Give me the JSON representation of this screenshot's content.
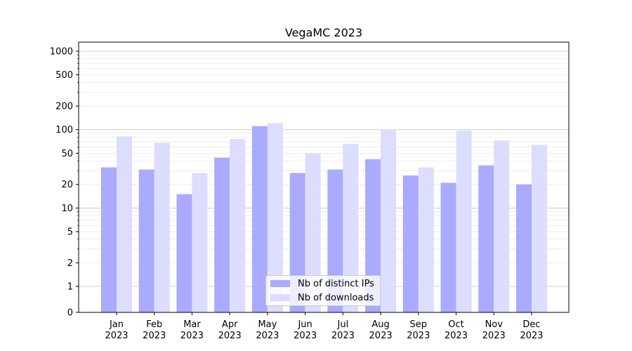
{
  "chart_data": {
    "type": "bar",
    "title": "VegaMC 2023",
    "xlabel": "",
    "ylabel": "",
    "yscale": "symlog",
    "ylim": [
      0,
      1200
    ],
    "yticks": [
      0,
      1,
      2,
      5,
      10,
      20,
      50,
      100,
      200,
      500,
      1000
    ],
    "ytick_labels": [
      "0",
      "1",
      "2",
      "5",
      "10",
      "20",
      "50",
      "100",
      "200",
      "500",
      "1000"
    ],
    "categories": [
      "Jan\n2023",
      "Feb\n2023",
      "Mar\n2023",
      "Apr\n2023",
      "May\n2023",
      "Jun\n2023",
      "Jul\n2023",
      "Aug\n2023",
      "Sep\n2023",
      "Oct\n2023",
      "Nov\n2023",
      "Dec\n2023"
    ],
    "series": [
      {
        "name": "Nb of distinct IPs",
        "color": "#aaaaff",
        "values": [
          33,
          31,
          15,
          44,
          111,
          28,
          31,
          42,
          26,
          21,
          35,
          20
        ]
      },
      {
        "name": "Nb of downloads",
        "color": "#ddddff",
        "values": [
          82,
          68,
          28,
          76,
          121,
          50,
          66,
          101,
          33,
          97,
          73,
          64
        ]
      }
    ],
    "grid": true,
    "legend_position": "lower-center"
  }
}
